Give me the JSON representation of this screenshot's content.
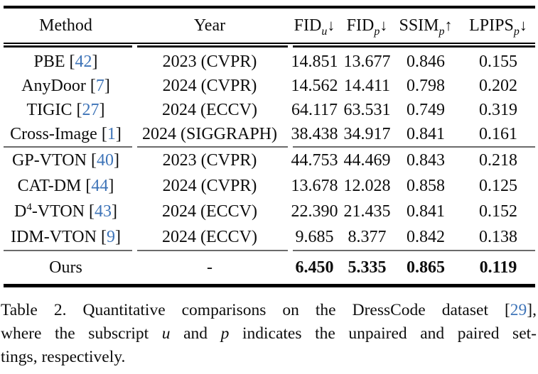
{
  "accent": {
    "citation_color": "#3e74b8",
    "text_color": "#0d0d0d"
  },
  "table": {
    "headers": {
      "method": "Method",
      "year": "Year",
      "metrics": [
        {
          "base": "FID",
          "sub": "u",
          "arrow": "↓"
        },
        {
          "base": "FID",
          "sub": "p",
          "arrow": "↓"
        },
        {
          "base": "SSIM",
          "sub": "p",
          "arrow": "↑"
        },
        {
          "base": "LPIPS",
          "sub": "p",
          "arrow": "↓"
        }
      ]
    },
    "rows": [
      {
        "method": {
          "name": "PBE",
          "open": " [",
          "cite": "42",
          "close": "]"
        },
        "year": "2023 (CVPR)",
        "fid_u": "14.851",
        "fid_p": "13.677",
        "ssim_p": "0.846",
        "lpips_p": "0.155"
      },
      {
        "method": {
          "name": "AnyDoor",
          "open": " [",
          "cite": "7",
          "close": "]"
        },
        "year": "2024 (CVPR)",
        "fid_u": "14.562",
        "fid_p": "14.411",
        "ssim_p": "0.798",
        "lpips_p": "0.202"
      },
      {
        "method": {
          "name": "TIGIC",
          "open": " [",
          "cite": "27",
          "close": "]"
        },
        "year": "2024 (ECCV)",
        "fid_u": "64.117",
        "fid_p": "63.531",
        "ssim_p": "0.749",
        "lpips_p": "0.319"
      },
      {
        "method": {
          "name": "Cross-Image",
          "open": " [",
          "cite": "1",
          "close": "]"
        },
        "year": "2024 (SIGGRAPH)",
        "fid_u": "38.438",
        "fid_p": "34.917",
        "ssim_p": "0.841",
        "lpips_p": "0.161"
      },
      {
        "method": {
          "name": "GP-VTON",
          "open": " [",
          "cite": "40",
          "close": "]"
        },
        "year": "2023 (CVPR)",
        "fid_u": "44.753",
        "fid_p": "44.469",
        "ssim_p": "0.843",
        "lpips_p": "0.218"
      },
      {
        "method": {
          "name": "CAT-DM",
          "open": " [",
          "cite": "44",
          "close": "]"
        },
        "year": "2024 (CVPR)",
        "fid_u": "13.678",
        "fid_p": "12.028",
        "ssim_p": "0.858",
        "lpips_p": "0.125"
      },
      {
        "method": {
          "name": "D",
          "sup": "4",
          "post": "-VTON",
          "open": " [",
          "cite": "43",
          "close": "]"
        },
        "year": "2024 (ECCV)",
        "fid_u": "22.390",
        "fid_p": "21.435",
        "ssim_p": "0.841",
        "lpips_p": "0.152"
      },
      {
        "method": {
          "name": "IDM-VTON",
          "open": " [",
          "cite": "9",
          "close": "]"
        },
        "year": "2024 (ECCV)",
        "fid_u": "9.685",
        "fid_p": "8.377",
        "ssim_p": "0.842",
        "lpips_p": "0.138"
      },
      {
        "method": {
          "name": "Ours"
        },
        "year": "-",
        "fid_u": "6.450",
        "fid_p": "5.335",
        "ssim_p": "0.865",
        "lpips_p": "0.119"
      }
    ]
  },
  "caption": {
    "line1": {
      "text": "Table 2. Quantitative comparisons on the DressCode dataset ",
      "open": "[",
      "cite": "29",
      "close": "],"
    },
    "line2": {
      "pre": "where the subscript ",
      "var_u": "u",
      "mid": " and ",
      "var_p": "p",
      "post": " indicates the unpaired and paired set-"
    },
    "line3": {
      "text": "tings, respectively."
    }
  }
}
